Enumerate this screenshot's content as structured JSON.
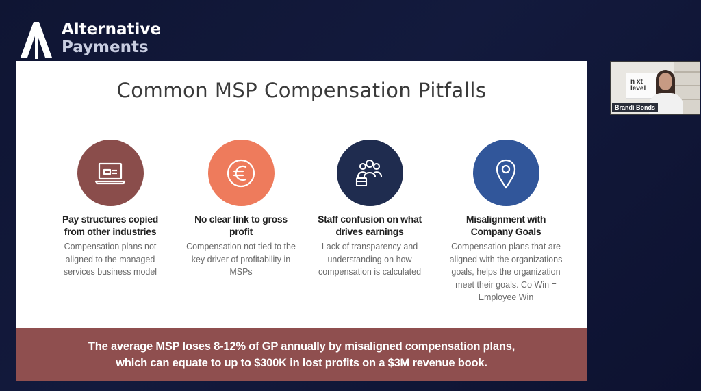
{
  "brand": {
    "line1": "Alternative",
    "line2": "Payments"
  },
  "slide": {
    "title": "Common MSP Compensation Pitfalls",
    "columns": [
      {
        "title": "Pay structures copied from other industries",
        "description": "Compensation plans not aligned to the managed services business model",
        "icon": "laptop-icon",
        "color": "#8a4d4b"
      },
      {
        "title": "No clear link to gross profit",
        "description": "Compensation not tied to the key driver of profitability in MSPs",
        "icon": "euro-icon",
        "color": "#ee7b5c"
      },
      {
        "title": "Staff confusion on what drives earnings",
        "description": "Lack of transparency and understanding on how compensation is calculated",
        "icon": "team-icon",
        "color": "#1f2c4f"
      },
      {
        "title": "Misalignment with Company Goals",
        "description": "Compensation plans that are aligned with the organizations goals, helps the organization meet their goals. Co Win = Employee Win",
        "icon": "location-pin-icon",
        "color": "#31569a"
      }
    ],
    "banner": "The average MSP loses 8-12% of GP annually by misaligned compensation plans, which can equate to up to $300K in lost profits on a $3M revenue book."
  },
  "webcam": {
    "name": "Brandi Bonds",
    "logo_text": "n xt level"
  }
}
